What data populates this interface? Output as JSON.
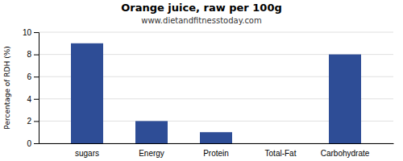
{
  "chart_data": {
    "type": "bar",
    "title": "Orange juice, raw per 100g",
    "subtitle": "www.dietandfitnesstoday.com",
    "categories": [
      "sugars",
      "Energy",
      "Protein",
      "Total-Fat",
      "Carbohydrate"
    ],
    "values": [
      9.0,
      2.0,
      1.0,
      0.0,
      8.0
    ],
    "color": "#2e4d96",
    "ylabel": "Percentage of RDH (%)",
    "ylim": [
      0,
      10
    ],
    "yticks": [
      0,
      2,
      4,
      6,
      8,
      10
    ],
    "grid": true
  }
}
